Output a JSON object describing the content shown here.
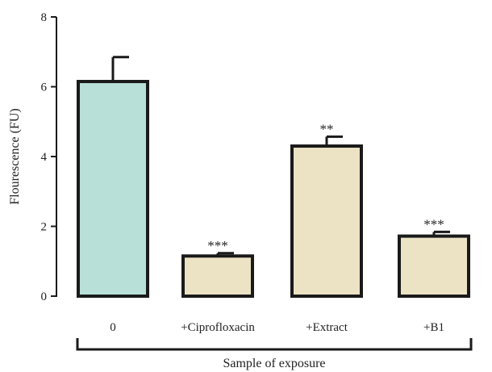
{
  "chart_data": {
    "type": "bar",
    "categories": [
      "0",
      "+Ciprofloxacin",
      "+Extract",
      "+B1"
    ],
    "values": [
      6.15,
      1.15,
      4.3,
      1.72
    ],
    "errors": [
      0.7,
      0.08,
      0.27,
      0.12
    ],
    "significance": [
      "",
      "***",
      "**",
      "***"
    ],
    "bar_colors": [
      "#b8e0d8",
      "#ebe3c4",
      "#ebe3c4",
      "#ebe3c4"
    ],
    "edge_color": "#1a1a1a",
    "ylabel": "Flourescence (FU)",
    "xlabel": "Sample of exposure",
    "ylim": [
      0,
      8
    ],
    "yticks": [
      "0",
      "2",
      "4",
      "6",
      "8"
    ],
    "grid": false,
    "legend": "none"
  }
}
